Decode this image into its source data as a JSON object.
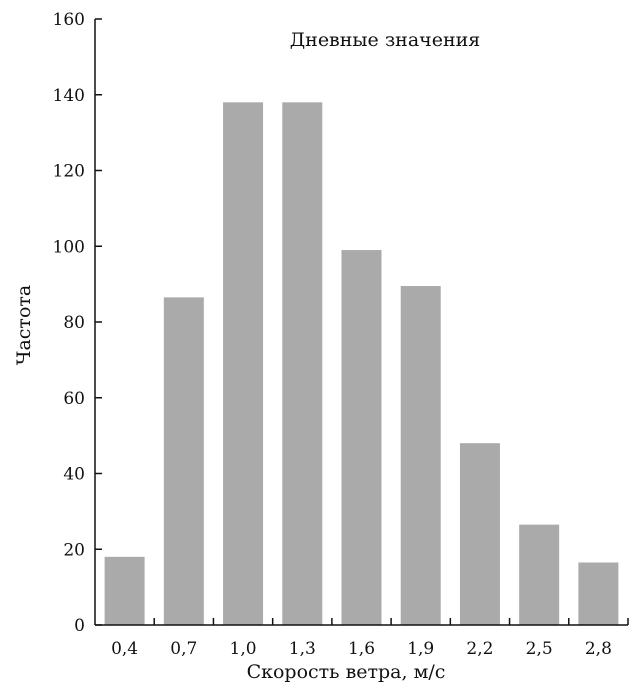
{
  "chart_data": {
    "type": "bar",
    "annotation": "Дневные значения",
    "xlabel": "Скорость ветра, м/с",
    "ylabel": "Частота",
    "categories": [
      "0,4",
      "0,7",
      "1,0",
      "1,3",
      "1,6",
      "1,9",
      "2,2",
      "2,5",
      "2,8"
    ],
    "values": [
      18,
      86.5,
      138,
      138,
      99,
      89.5,
      48,
      26.5,
      16.5
    ],
    "ylim": [
      0,
      160
    ],
    "yticks": [
      0,
      20,
      40,
      60,
      80,
      100,
      120,
      140,
      160
    ],
    "grid": false,
    "legend": "none",
    "bar_color": "#aaaaaa",
    "axis_color": "#111111"
  }
}
